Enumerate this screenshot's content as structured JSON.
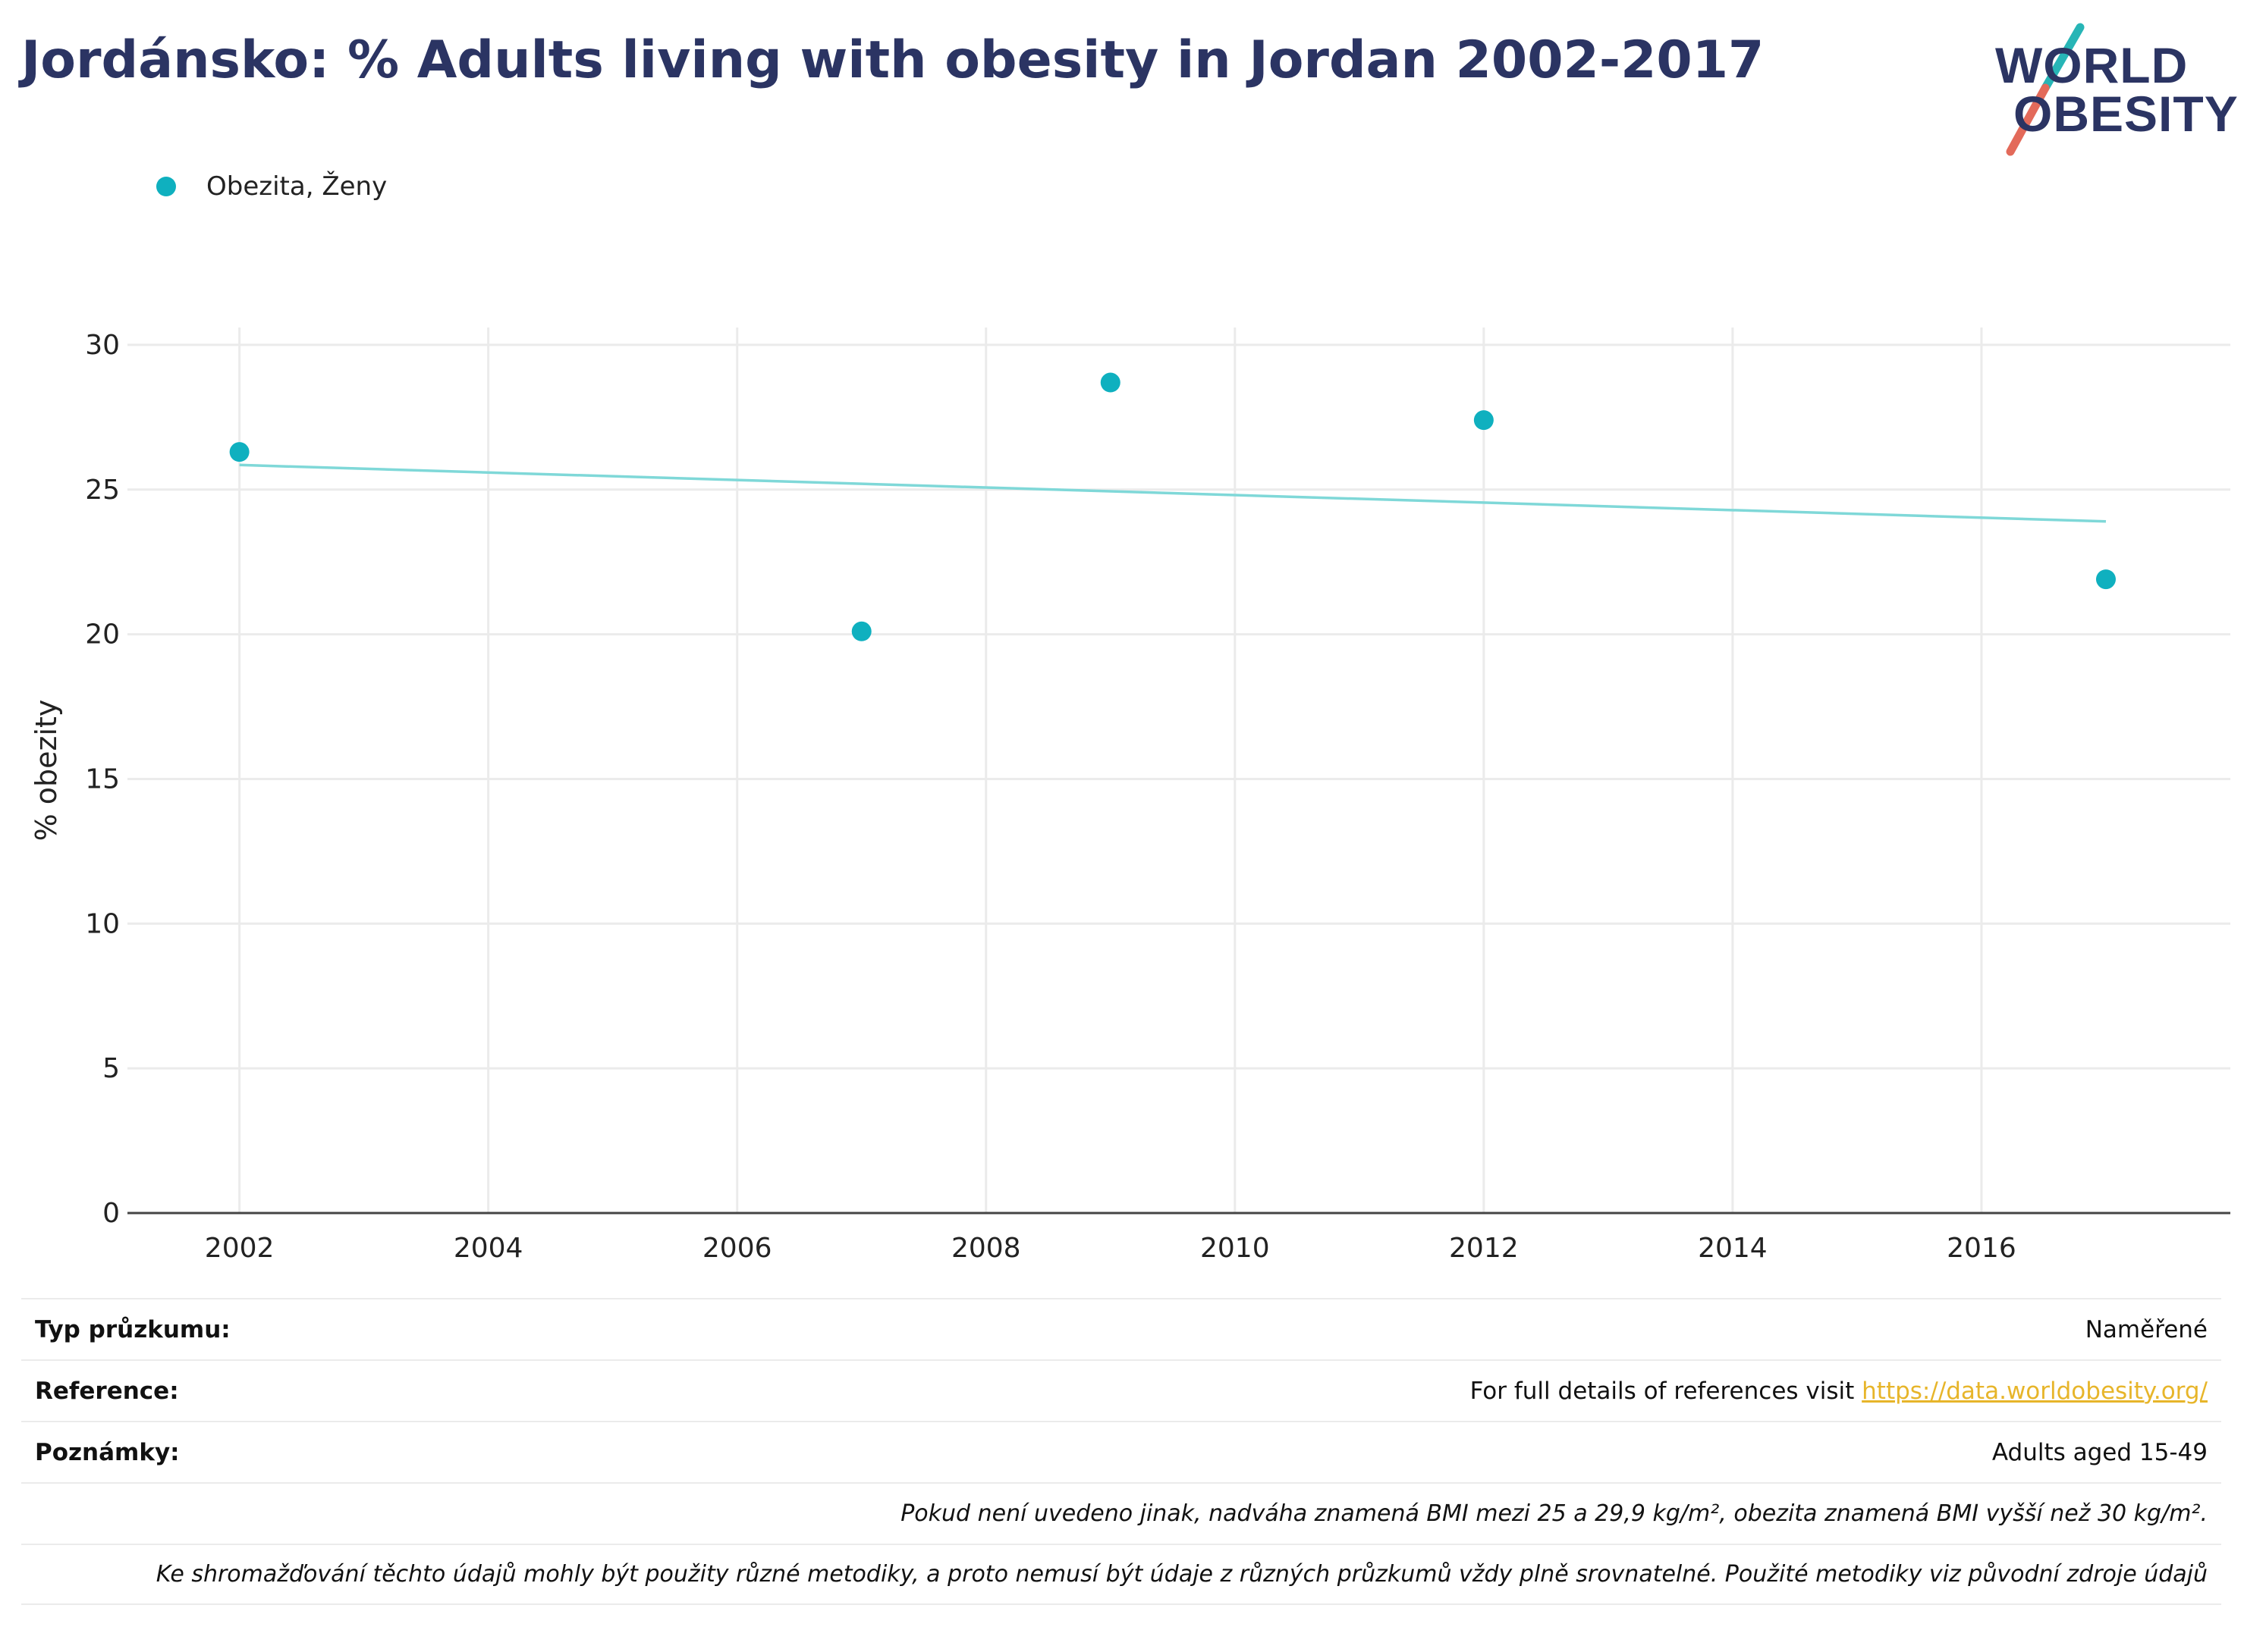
{
  "title": "Jordánsko: % Adults living with obesity in Jordan 2002-2017",
  "logo": {
    "line1": "WORLD",
    "line2": "OBESITY",
    "accent_teal": "#27b5b6",
    "accent_red": "#e36a5a"
  },
  "colors": {
    "series": "#0fb0bf",
    "trend": "#7fd8d8",
    "title": "#2b3463"
  },
  "legend": {
    "label": "Obezita, Ženy"
  },
  "chart_data": {
    "type": "scatter",
    "title": "Jordánsko: % Adults living with obesity in Jordan 2002-2017",
    "xlabel": "",
    "ylabel": "% obezity",
    "xlim": [
      2001.1,
      2018.0
    ],
    "ylim": [
      0,
      30.6
    ],
    "x_ticks": [
      2002,
      2004,
      2006,
      2008,
      2010,
      2012,
      2014,
      2016
    ],
    "y_ticks": [
      0,
      5,
      10,
      15,
      20,
      25,
      30
    ],
    "grid": true,
    "legend_position": "top-left",
    "series": [
      {
        "name": "Obezita, Ženy",
        "points": [
          {
            "x": 2002,
            "y": 26.3
          },
          {
            "x": 2007,
            "y": 20.1
          },
          {
            "x": 2009,
            "y": 28.7
          },
          {
            "x": 2012,
            "y": 27.4
          },
          {
            "x": 2017,
            "y": 21.9
          }
        ]
      }
    ],
    "trendline": {
      "x": [
        2002,
        2017
      ],
      "y": [
        25.85,
        23.9
      ]
    }
  },
  "info": {
    "survey_type_label": "Typ průzkumu:",
    "survey_type_value": "Naměřené",
    "reference_label": "Reference:",
    "reference_text": "For full details of references visit ",
    "reference_link": "https://data.worldobesity.org/",
    "notes_label": "Poznámky:",
    "notes_value": "Adults aged 15-49",
    "note_bmi": "Pokud není uvedeno jinak, nadváha znamená BMI mezi 25 a 29,9 kg/m², obezita znamená BMI vyšší než 30 kg/m².",
    "note_methods": "Ke shromažďování těchto údajů mohly být použity různé metodiky, a proto nemusí být údaje z různých průzkumů vždy plně srovnatelné. Použité metodiky viz původní zdroje údajů"
  }
}
